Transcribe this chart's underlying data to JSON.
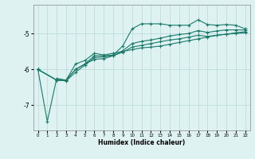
{
  "xlabel": "Humidex (Indice chaleur)",
  "xlim": [
    -0.5,
    22.5
  ],
  "ylim": [
    -7.7,
    -4.2
  ],
  "bg_color": "#dff2f2",
  "grid_color": "#b8d8d8",
  "line_color": "#1a7a6a",
  "xticks": [
    0,
    1,
    2,
    3,
    4,
    5,
    6,
    7,
    8,
    9,
    10,
    11,
    12,
    13,
    14,
    15,
    16,
    17,
    18,
    19,
    20,
    21,
    22
  ],
  "yticks": [
    -7,
    -6,
    -5
  ],
  "line1_x": [
    0,
    1,
    2,
    3,
    4,
    5,
    6,
    7,
    8,
    9,
    10,
    11,
    12,
    13,
    14,
    15,
    16,
    17,
    18,
    19,
    20,
    21,
    22
  ],
  "line1_y": [
    -6.0,
    -7.45,
    -6.25,
    -6.3,
    -5.85,
    -5.75,
    -5.55,
    -5.6,
    -5.55,
    -5.5,
    -5.45,
    -5.4,
    -5.38,
    -5.35,
    -5.3,
    -5.25,
    -5.2,
    -5.15,
    -5.1,
    -5.05,
    -5.02,
    -4.98,
    -4.95
  ],
  "line2_x": [
    0,
    2,
    3,
    4,
    5,
    6,
    7,
    8,
    9,
    10,
    11,
    12,
    13,
    14,
    15,
    16,
    17,
    18,
    19,
    20,
    21,
    22
  ],
  "line2_y": [
    -6.0,
    -6.3,
    -6.3,
    -6.0,
    -5.85,
    -5.62,
    -5.62,
    -5.6,
    -5.35,
    -4.87,
    -4.73,
    -4.73,
    -4.73,
    -4.77,
    -4.77,
    -4.77,
    -4.62,
    -4.75,
    -4.77,
    -4.75,
    -4.77,
    -4.87
  ],
  "line3_x": [
    0,
    2,
    3,
    4,
    5,
    6,
    7,
    8,
    9,
    10,
    11,
    12,
    13,
    14,
    15,
    16,
    17,
    18,
    19,
    20,
    21,
    22
  ],
  "line3_y": [
    -6.0,
    -6.3,
    -6.3,
    -6.0,
    -5.85,
    -5.72,
    -5.7,
    -5.62,
    -5.48,
    -5.28,
    -5.22,
    -5.18,
    -5.13,
    -5.07,
    -5.03,
    -5.0,
    -4.92,
    -4.97,
    -4.93,
    -4.9,
    -4.9,
    -4.9
  ],
  "line4_x": [
    0,
    2,
    3,
    4,
    5,
    6,
    7,
    8,
    9,
    10,
    11,
    12,
    13,
    14,
    15,
    16,
    17,
    18,
    19,
    20,
    21,
    22
  ],
  "line4_y": [
    -6.0,
    -6.3,
    -6.32,
    -6.08,
    -5.88,
    -5.67,
    -5.65,
    -5.62,
    -5.52,
    -5.38,
    -5.33,
    -5.28,
    -5.23,
    -5.18,
    -5.15,
    -5.1,
    -5.05,
    -5.08,
    -5.05,
    -5.02,
    -5.0,
    -4.98
  ]
}
